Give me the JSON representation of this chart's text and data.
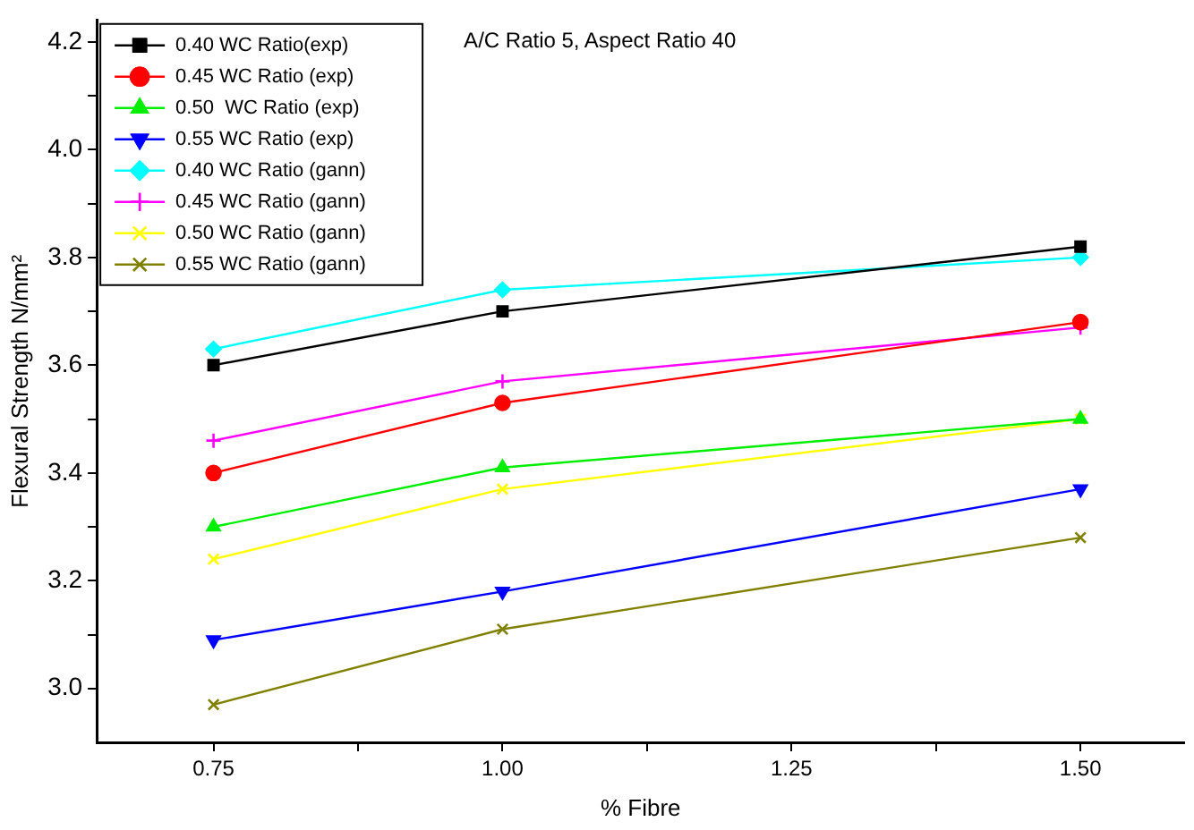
{
  "chart_data": {
    "type": "line",
    "xlabel": "% Fibre",
    "ylabel": "Flexural Strength N/mm²",
    "annotations": [
      "A/C Ratio 5, Aspect Ratio 40"
    ],
    "x": [
      0.75,
      1.0,
      1.5
    ],
    "xlim": [
      0.649,
      1.59
    ],
    "xticks": [
      {
        "value": 0.75,
        "label": "0.75"
      },
      {
        "value": 0.875,
        "label": null
      },
      {
        "value": 1.0,
        "label": "1.00"
      },
      {
        "value": 1.125,
        "label": null
      },
      {
        "value": 1.25,
        "label": "1.25"
      },
      {
        "value": 1.375,
        "label": null
      },
      {
        "value": 1.5,
        "label": "1.50"
      }
    ],
    "ylim": [
      2.9,
      4.24
    ],
    "yticks": [
      {
        "value": 3.0,
        "label": "3.0"
      },
      {
        "value": 3.1,
        "label": null
      },
      {
        "value": 3.2,
        "label": "3.2"
      },
      {
        "value": 3.3,
        "label": null
      },
      {
        "value": 3.4,
        "label": "3.4"
      },
      {
        "value": 3.5,
        "label": null
      },
      {
        "value": 3.6,
        "label": "3.6"
      },
      {
        "value": 3.7,
        "label": null
      },
      {
        "value": 3.8,
        "label": "3.8"
      },
      {
        "value": 3.9,
        "label": null
      },
      {
        "value": 4.0,
        "label": "4.0"
      },
      {
        "value": 4.1,
        "label": null
      },
      {
        "value": 4.2,
        "label": "4.2"
      }
    ],
    "grid": false,
    "legend": "top left",
    "line_style": "solid",
    "series": [
      {
        "name": "0.40 WC Ratio(exp)",
        "color": "#000000",
        "marker": "square",
        "values": [
          3.6,
          3.7,
          3.82
        ]
      },
      {
        "name": "0.45 WC Ratio (exp)",
        "color": "#ff0000",
        "marker": "circle",
        "values": [
          3.4,
          3.53,
          3.68
        ]
      },
      {
        "name": "0.50  WC Ratio (exp)",
        "color": "#00ee00",
        "marker": "triangle",
        "values": [
          3.3,
          3.41,
          3.5
        ]
      },
      {
        "name": "0.55 WC Ratio (exp)",
        "color": "#0000ff",
        "marker": "triangle-down",
        "values": [
          3.09,
          3.18,
          3.37
        ]
      },
      {
        "name": "0.40 WC Ratio (gann)",
        "color": "#00ffff",
        "marker": "diamond",
        "values": [
          3.63,
          3.74,
          3.8
        ]
      },
      {
        "name": "0.45 WC Ratio (gann)",
        "color": "#ff00ff",
        "marker": "plus",
        "values": [
          3.46,
          3.57,
          3.67
        ]
      },
      {
        "name": "0.50 WC Ratio (gann)",
        "color": "#ffff00",
        "marker": "cross",
        "values": [
          3.24,
          3.37,
          3.5
        ]
      },
      {
        "name": "0.55 WC Ratio (gann)",
        "color": "#808000",
        "marker": "cross",
        "values": [
          2.97,
          3.11,
          3.28
        ]
      }
    ]
  }
}
